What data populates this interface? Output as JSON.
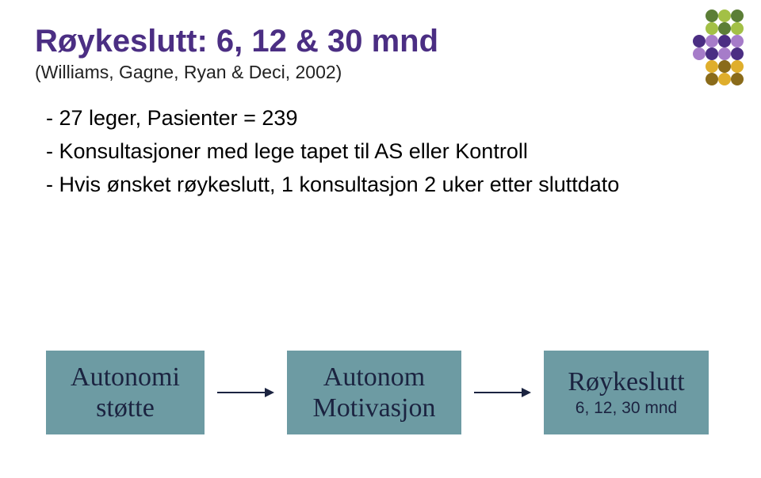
{
  "title": "Røykeslutt: 6, 12 & 30 mnd",
  "subtitle": "(Williams, Gagne, Ryan & Deci, 2002)",
  "bullets": [
    "- 27 leger, Pasienter = 239",
    "- Konsultasjoner med lege tapet til AS eller Kontroll",
    "- Hvis ønsket røykeslutt, 1 konsultasjon 2 uker etter sluttdato"
  ],
  "boxes": [
    {
      "lines": [
        "Autonomi",
        "støtte"
      ]
    },
    {
      "lines": [
        "Autonom",
        "Motivasjon"
      ]
    },
    {
      "big": "Røykeslutt",
      "sub": "6, 12, 30 mnd"
    }
  ],
  "colors": {
    "title": "#4b2e83",
    "text": "#000000",
    "box_bg": "#6d9ba3",
    "box_text": "#1b2340",
    "arrow": "#1b2340",
    "background": "#ffffff"
  },
  "decor_dots": [
    [
      null,
      "#5b7e36",
      "#a3c046",
      "#5b7e36"
    ],
    [
      null,
      "#a3c046",
      "#5b7e36",
      "#a3c046"
    ],
    [
      "#4b2e83",
      "#a67cc9",
      "#4b2e83",
      "#a67cc9"
    ],
    [
      "#a67cc9",
      "#4b2e83",
      "#a67cc9",
      "#4b2e83"
    ],
    [
      null,
      "#dfae2c",
      "#8a6b1a",
      "#dfae2c"
    ],
    [
      null,
      "#8a6b1a",
      "#dfae2c",
      "#8a6b1a"
    ]
  ]
}
